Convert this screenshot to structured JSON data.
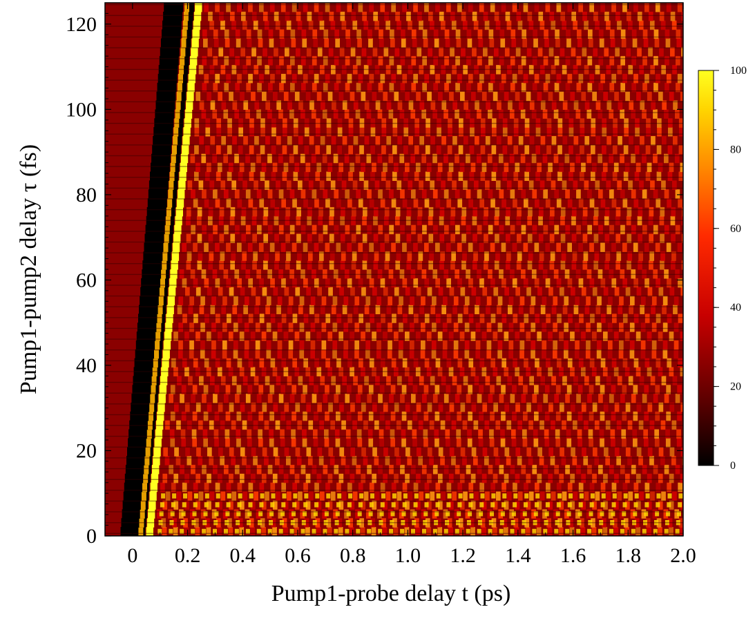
{
  "chart_data": {
    "type": "heatmap",
    "title": "",
    "xlabel": "Pump1-probe delay t (ps)",
    "ylabel": "Pump1-pump2 delay τ (fs)",
    "xlim": [
      -0.1,
      2.0
    ],
    "ylim": [
      0,
      125
    ],
    "x_ticks": [
      "0",
      "0.2",
      "0.4",
      "0.6",
      "0.8",
      "1.0",
      "1.2",
      "1.4",
      "1.6",
      "1.8",
      "2.0"
    ],
    "x_tick_values": [
      0,
      0.2,
      0.4,
      0.6,
      0.8,
      1.0,
      1.2,
      1.4,
      1.6,
      1.8,
      2.0
    ],
    "y_ticks": [
      "0",
      "20",
      "40",
      "60",
      "80",
      "100",
      "120"
    ],
    "y_tick_values": [
      0,
      20,
      40,
      60,
      80,
      100,
      120
    ],
    "colorbar": {
      "range": [
        0,
        100
      ],
      "ticks": [
        "0",
        "20",
        "40",
        "60",
        "80",
        "100"
      ],
      "tick_values": [
        0,
        20,
        40,
        60,
        80,
        100
      ],
      "colormap": [
        "#000000",
        "#5a0000",
        "#c80000",
        "#ff2a00",
        "#ff8c00",
        "#ffd400",
        "#ffff20"
      ]
    },
    "features": {
      "dark_band": {
        "t_at_tau0": -0.01,
        "t_at_tau125": 0.15
      },
      "bright_band": {
        "t_at_tau0": 0.06,
        "t_at_tau125": 0.24
      },
      "oscillation_period_ps": 0.04
    }
  }
}
